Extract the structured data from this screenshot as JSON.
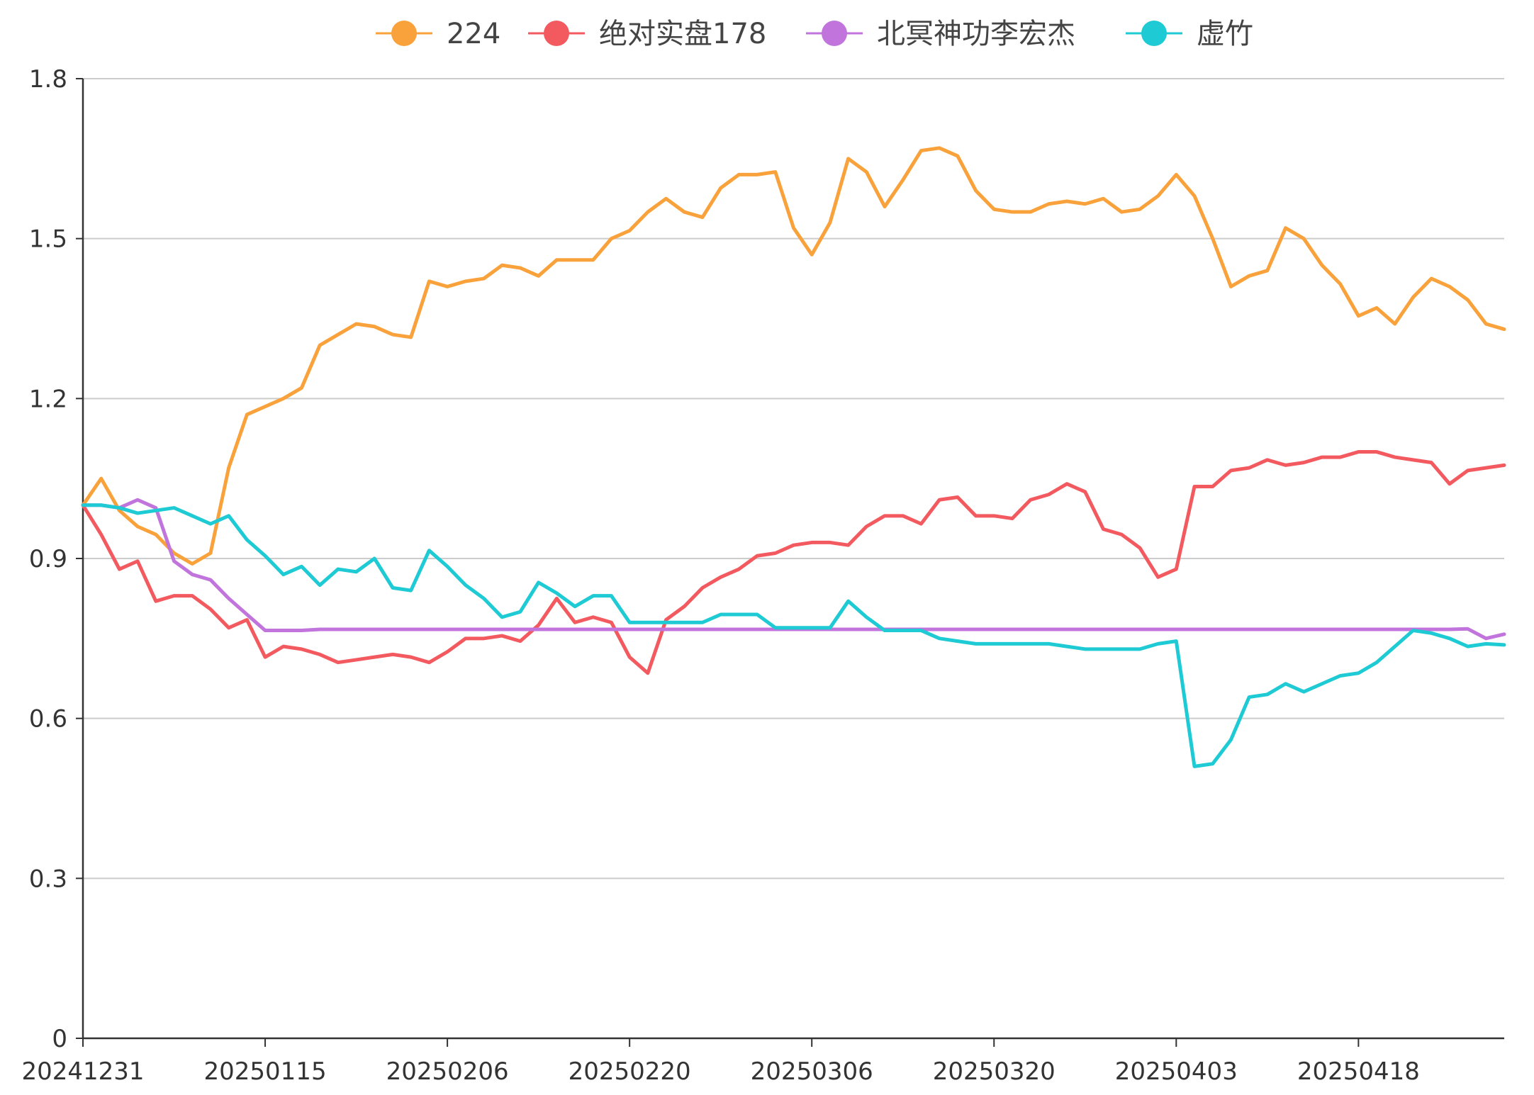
{
  "chart_data": {
    "type": "line",
    "title": "",
    "xlabel": "",
    "ylabel": "",
    "ylim": [
      0,
      1.8
    ],
    "yticks": [
      0,
      0.3,
      0.6,
      0.9,
      1.2,
      1.5,
      1.8
    ],
    "ytick_labels": [
      "0",
      "0.3",
      "0.6",
      "0.9",
      "1.2",
      "1.5",
      "1.8"
    ],
    "xtick_labels": [
      "20241231",
      "20250115",
      "20250206",
      "20250220",
      "20250306",
      "20250320",
      "20250403",
      "20250418"
    ],
    "grid": true,
    "legend_position": "top",
    "x_count": 79,
    "series": [
      {
        "name": "224",
        "color": "#f9a23b",
        "values": [
          1.0,
          1.05,
          0.99,
          0.96,
          0.945,
          0.91,
          0.89,
          0.91,
          1.07,
          1.17,
          1.185,
          1.2,
          1.22,
          1.3,
          1.32,
          1.34,
          1.335,
          1.32,
          1.315,
          1.42,
          1.41,
          1.42,
          1.425,
          1.45,
          1.445,
          1.43,
          1.46,
          1.46,
          1.46,
          1.5,
          1.515,
          1.55,
          1.575,
          1.55,
          1.54,
          1.595,
          1.62,
          1.62,
          1.625,
          1.52,
          1.47,
          1.53,
          1.65,
          1.625,
          1.56,
          1.61,
          1.665,
          1.67,
          1.655,
          1.59,
          1.555,
          1.55,
          1.55,
          1.565,
          1.57,
          1.565,
          1.575,
          1.55,
          1.555,
          1.58,
          1.62,
          1.58,
          1.5,
          1.41,
          1.43,
          1.44,
          1.52,
          1.5,
          1.45,
          1.415,
          1.355,
          1.37,
          1.34,
          1.39,
          1.425,
          1.41,
          1.385,
          1.34,
          1.33
        ]
      },
      {
        "name": "绝对实盘178",
        "color": "#f35a5f",
        "values": [
          1.0,
          0.945,
          0.88,
          0.895,
          0.82,
          0.83,
          0.83,
          0.805,
          0.77,
          0.785,
          0.715,
          0.735,
          0.73,
          0.72,
          0.705,
          0.71,
          0.715,
          0.72,
          0.715,
          0.705,
          0.725,
          0.75,
          0.75,
          0.755,
          0.745,
          0.775,
          0.825,
          0.78,
          0.79,
          0.78,
          0.715,
          0.685,
          0.785,
          0.81,
          0.845,
          0.865,
          0.88,
          0.905,
          0.91,
          0.925,
          0.93,
          0.93,
          0.925,
          0.96,
          0.98,
          0.98,
          0.965,
          1.01,
          1.015,
          0.98,
          0.98,
          0.975,
          1.01,
          1.02,
          1.04,
          1.025,
          0.955,
          0.945,
          0.92,
          0.865,
          0.88,
          1.035,
          1.035,
          1.065,
          1.07,
          1.085,
          1.075,
          1.08,
          1.09,
          1.09,
          1.1,
          1.1,
          1.09,
          1.085,
          1.08,
          1.04,
          1.065,
          1.07,
          1.075
        ]
      },
      {
        "name": "北冥神功李宏杰",
        "color": "#c174dc",
        "values": [
          1.0,
          1.0,
          0.995,
          1.01,
          0.995,
          0.895,
          0.87,
          0.86,
          0.825,
          0.795,
          0.765,
          0.765,
          0.765,
          0.767,
          0.767,
          0.767,
          0.767,
          0.767,
          0.767,
          0.767,
          0.767,
          0.767,
          0.767,
          0.767,
          0.767,
          0.767,
          0.767,
          0.767,
          0.767,
          0.767,
          0.767,
          0.767,
          0.767,
          0.767,
          0.767,
          0.767,
          0.767,
          0.767,
          0.767,
          0.767,
          0.767,
          0.767,
          0.767,
          0.767,
          0.767,
          0.767,
          0.767,
          0.767,
          0.767,
          0.767,
          0.767,
          0.767,
          0.767,
          0.767,
          0.767,
          0.767,
          0.767,
          0.767,
          0.767,
          0.767,
          0.767,
          0.767,
          0.767,
          0.767,
          0.767,
          0.767,
          0.767,
          0.767,
          0.767,
          0.767,
          0.767,
          0.767,
          0.767,
          0.767,
          0.767,
          0.767,
          0.768,
          0.75,
          0.758
        ]
      },
      {
        "name": "虚竹",
        "color": "#1ecad3",
        "values": [
          1.0,
          1.0,
          0.995,
          0.985,
          0.99,
          0.995,
          0.98,
          0.965,
          0.98,
          0.935,
          0.905,
          0.87,
          0.885,
          0.85,
          0.88,
          0.875,
          0.9,
          0.845,
          0.84,
          0.915,
          0.885,
          0.85,
          0.825,
          0.79,
          0.8,
          0.855,
          0.835,
          0.81,
          0.83,
          0.83,
          0.78,
          0.78,
          0.78,
          0.78,
          0.78,
          0.795,
          0.795,
          0.795,
          0.77,
          0.77,
          0.77,
          0.77,
          0.82,
          0.79,
          0.765,
          0.765,
          0.765,
          0.75,
          0.745,
          0.74,
          0.74,
          0.74,
          0.74,
          0.74,
          0.735,
          0.73,
          0.73,
          0.73,
          0.73,
          0.74,
          0.745,
          0.51,
          0.515,
          0.56,
          0.64,
          0.645,
          0.665,
          0.65,
          0.665,
          0.68,
          0.685,
          0.705,
          0.735,
          0.765,
          0.76,
          0.75,
          0.735,
          0.74,
          0.738
        ]
      }
    ]
  }
}
